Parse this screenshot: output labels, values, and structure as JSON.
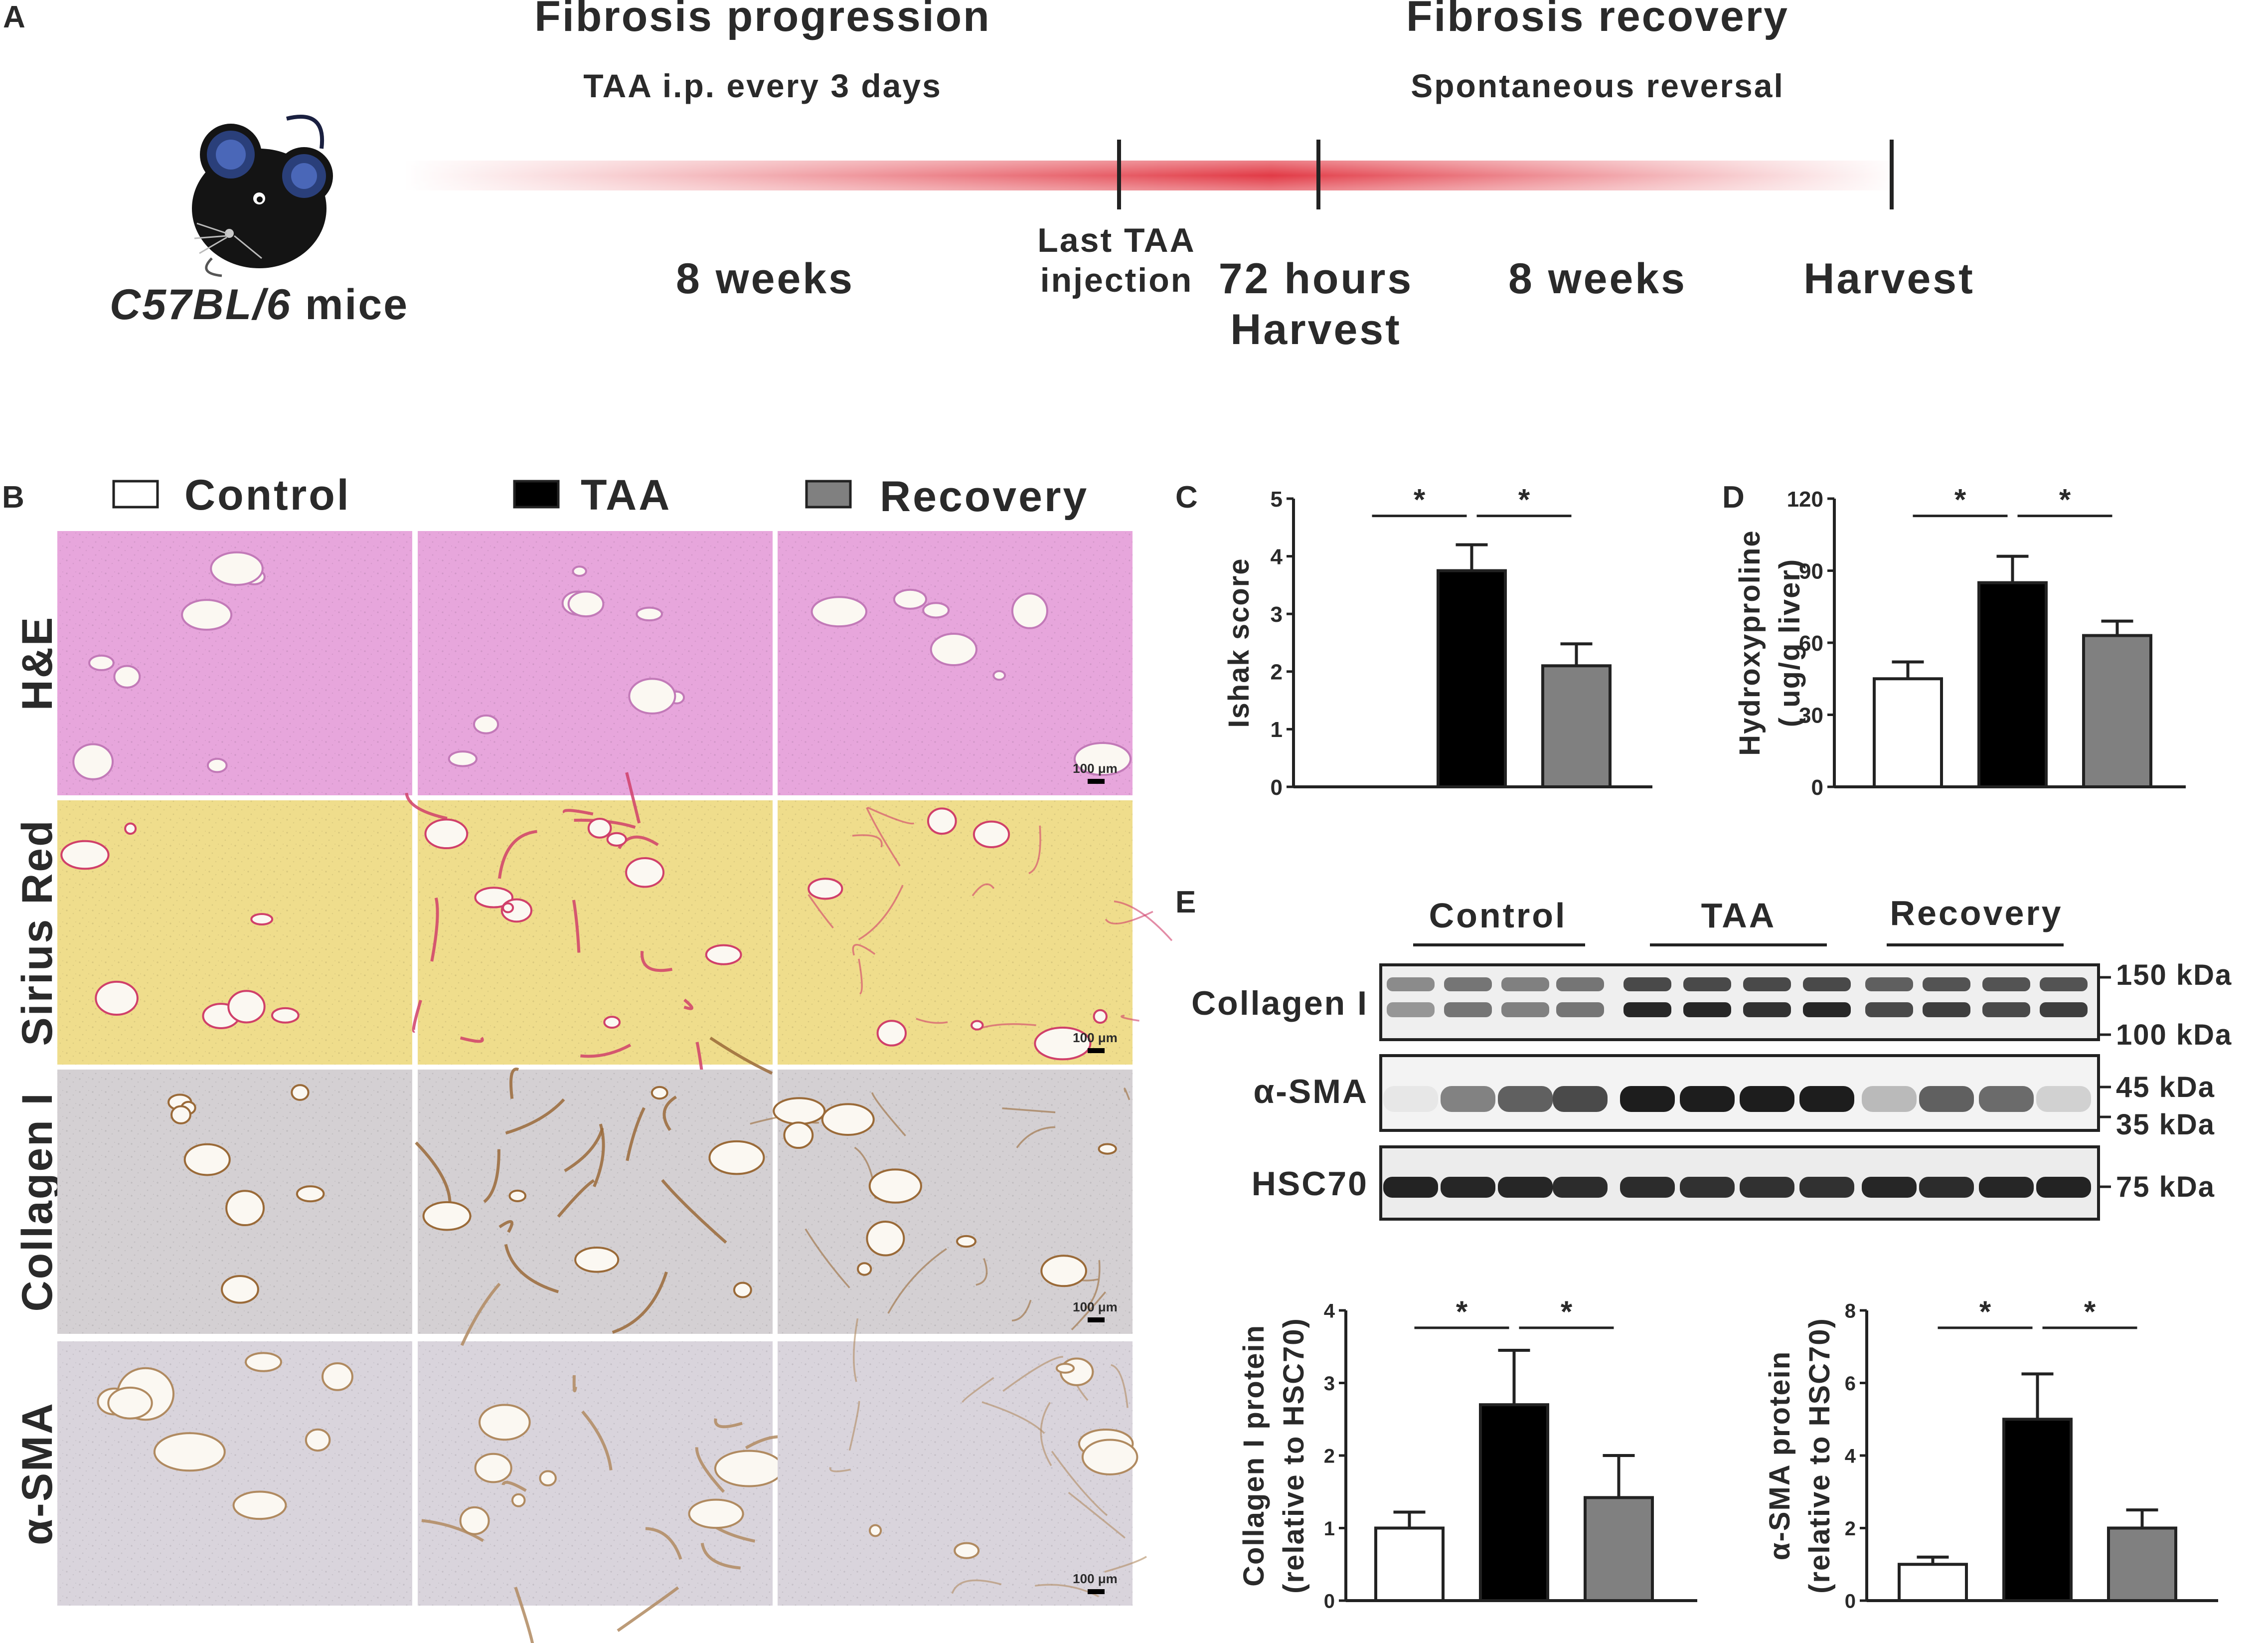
{
  "panel_a": {
    "letter": "A",
    "progression_title": "Fibrosis progression",
    "progression_sub": "TAA i.p. every 3 days",
    "recovery_title": "Fibrosis recovery",
    "recovery_sub": "Spontaneous reversal",
    "mouse_strain": "C57BL/6",
    "mouse_suffix": " mice",
    "weeks_1": "8 weeks",
    "last_taa_1": "Last TAA",
    "last_taa_2": "injection",
    "hours_72": "72 hours",
    "harvest_1": "Harvest",
    "weeks_2": "8 weeks",
    "harvest_2": "Harvest"
  },
  "panel_b": {
    "letter": "B",
    "legend": [
      "Control",
      "TAA",
      "Recovery"
    ],
    "rows": [
      "H&E",
      "Sirius Red",
      "Collagen I",
      "α-SMA"
    ],
    "scale_bar": "100 μm"
  },
  "panel_e": {
    "letter": "E",
    "groups": [
      "Control",
      "TAA",
      "Recovery"
    ],
    "proteins": [
      "Collagen I",
      "α-SMA",
      "HSC70"
    ],
    "markers": [
      "150 kDa",
      "100 kDa",
      "45 kDa",
      "35 kDa",
      "75 kDa"
    ]
  },
  "colors": {
    "control": "#ffffff",
    "taa": "#000000",
    "recovery": "#808080",
    "gradient": "#e0303c"
  },
  "chart_data": [
    {
      "id": "C",
      "type": "bar",
      "categories": [
        "Control",
        "TAA",
        "Recovery"
      ],
      "values": [
        0,
        3.75,
        2.1
      ],
      "errors": [
        0,
        0.45,
        0.38
      ],
      "ylabel": "Ishak score",
      "ylim": [
        0,
        5
      ],
      "yticks": [
        0,
        1,
        2,
        3,
        4,
        5
      ],
      "significance": [
        "*",
        "*"
      ]
    },
    {
      "id": "D",
      "type": "bar",
      "categories": [
        "Control",
        "TAA",
        "Recovery"
      ],
      "values": [
        45,
        85,
        63
      ],
      "errors": [
        7,
        11,
        6
      ],
      "ylabel": [
        "Hydroxyproline",
        "( ug/g liver)"
      ],
      "ylim": [
        0,
        120
      ],
      "yticks": [
        0,
        30,
        60,
        90,
        120
      ],
      "significance": [
        "*",
        "*"
      ]
    },
    {
      "id": "E1",
      "type": "bar",
      "categories": [
        "Control",
        "TAA",
        "Recovery"
      ],
      "values": [
        1.0,
        2.7,
        1.42
      ],
      "errors": [
        0.22,
        0.75,
        0.58
      ],
      "ylabel": [
        "Collagen I protein",
        "(relative to HSC70)"
      ],
      "ylim": [
        0,
        4
      ],
      "yticks": [
        0,
        1,
        2,
        3,
        4
      ],
      "significance": [
        "*",
        "*"
      ]
    },
    {
      "id": "E2",
      "type": "bar",
      "categories": [
        "Control",
        "TAA",
        "Recovery"
      ],
      "values": [
        1.0,
        5.0,
        2.0
      ],
      "errors": [
        0.2,
        1.25,
        0.5
      ],
      "ylabel": [
        "α-SMA protein",
        "(relative to HSC70)"
      ],
      "ylim": [
        0,
        8
      ],
      "yticks": [
        0,
        2,
        4,
        6,
        8
      ],
      "significance": [
        "*",
        "*"
      ]
    }
  ]
}
